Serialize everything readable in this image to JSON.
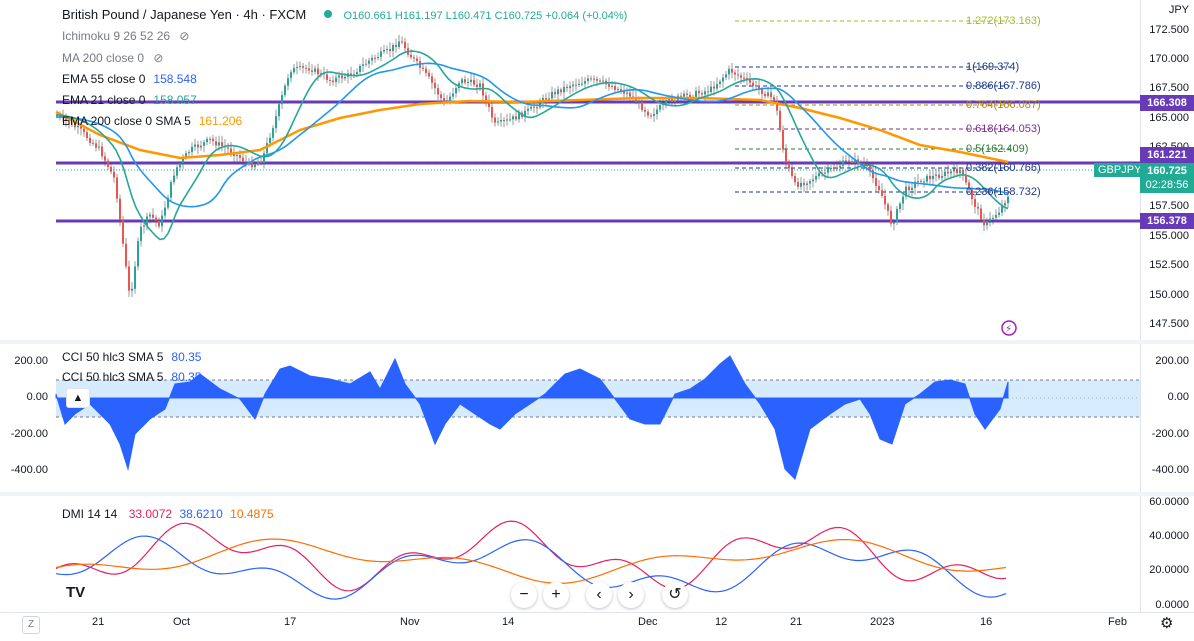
{
  "header": {
    "symbol_title": "British Pound / Japanese Yen · 4h · FXCM",
    "ohlc": "O160.661 H161.197 L160.471 C160.725 +0.064 (+0.04%)",
    "status_dot_color": "#22ab94"
  },
  "indicators": [
    {
      "name": "Ichimoku 9 26 52 26",
      "value": "",
      "color": "#787b86"
    },
    {
      "name": "MA 200 close 0",
      "value": "",
      "color": "#787b86"
    },
    {
      "name": "EMA 55 close 0",
      "value": "158.548",
      "color": "#2962ff"
    },
    {
      "name": "EMA 21 close 0",
      "value": "158.057",
      "color": "#26a69a"
    },
    {
      "name": "EMA 200 close 0 SMA 5",
      "value": "161.206",
      "color": "#ff9800"
    }
  ],
  "price_axis": {
    "currency": "JPY",
    "ticks": [
      "172.500",
      "170.000",
      "167.500",
      "165.000",
      "162.500",
      "157.500",
      "155.000",
      "152.500",
      "150.000",
      "147.500"
    ],
    "tags": [
      {
        "label": "166.308",
        "color": "#673ab7"
      },
      {
        "label": "161.221",
        "color": "#673ab7"
      },
      {
        "label": "160.725",
        "color": "#22ab94"
      },
      {
        "label": "02:28:56",
        "color": "#22ab94"
      },
      {
        "label": "156.378",
        "color": "#673ab7"
      }
    ],
    "symbol_badge": "GBPJPY"
  },
  "fib_levels": [
    {
      "label": "1.272(173.163)",
      "color": "#a3b82f"
    },
    {
      "label": "1(169.374)",
      "color": "#1e3a8a"
    },
    {
      "label": "0.886(167.786)",
      "color": "#1e3a8a"
    },
    {
      "label": "0.764(166.087)",
      "color": "#b8860b"
    },
    {
      "label": "0.618(164.053)",
      "color": "#7b2d8e"
    },
    {
      "label": "0.5(162.409)",
      "color": "#2e7d32"
    },
    {
      "label": "0.382(160.766)",
      "color": "#1e3a8a"
    },
    {
      "label": "0.236(158.732)",
      "color": "#1e3a8a"
    }
  ],
  "cci_pane": {
    "legend1": "CCI 50 hlc3 SMA 5",
    "legend1_value": "80.35",
    "legend2": "CCI 50 hlc3 SMA 5",
    "legend2_value": "80.35",
    "ticks": [
      "200.00",
      "0.00",
      "-200.00",
      "-400.00"
    ],
    "left_ticks": [
      "200.00",
      "0.00",
      "-200.00",
      "-400.00"
    ]
  },
  "dmi_pane": {
    "legend": "DMI 14 14",
    "plus_di": "33.0072",
    "minus_di": "38.6210",
    "adx": "10.4875",
    "ticks": [
      "60.0000",
      "40.0000",
      "20.0000",
      "0.0000"
    ]
  },
  "time_axis": {
    "labels": [
      "21",
      "Oct",
      "17",
      "Nov",
      "14",
      "Dec",
      "12",
      "21",
      "2023",
      "16",
      "Feb"
    ]
  },
  "controls": {
    "zoom_out": "−",
    "zoom_in": "+",
    "scroll_left": "‹",
    "scroll_right": "›",
    "reset": "↺"
  },
  "logo_text": "TV",
  "corner_left": "Z",
  "corner_right": "⚙"
}
